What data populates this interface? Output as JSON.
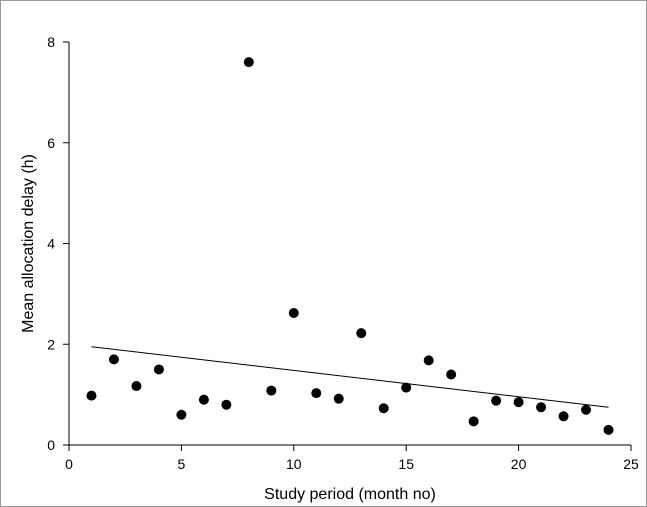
{
  "chart_data": {
    "type": "scatter",
    "title": "",
    "xlabel": "Study period (month no)",
    "ylabel": "Mean allocation delay (h)",
    "xlim": [
      0,
      25
    ],
    "ylim": [
      0,
      8
    ],
    "xticks": [
      0,
      5,
      10,
      15,
      20,
      25
    ],
    "yticks": [
      0,
      2,
      4,
      6,
      8
    ],
    "grid": false,
    "series": [
      {
        "x": [
          1,
          2,
          3,
          4,
          5,
          6,
          7,
          8,
          9,
          10,
          11,
          12,
          13,
          14,
          15,
          16,
          17,
          18,
          19,
          20,
          21,
          22,
          23,
          24
        ],
        "y": [
          0.98,
          1.7,
          1.17,
          1.5,
          0.6,
          0.9,
          0.8,
          7.6,
          1.08,
          2.62,
          1.03,
          0.92,
          2.22,
          0.73,
          1.14,
          1.68,
          1.4,
          0.47,
          0.88,
          0.85,
          0.75,
          0.57,
          0.7,
          0.3
        ],
        "marker_color": "#000000"
      }
    ],
    "trendline": {
      "x": [
        1,
        24
      ],
      "y": [
        1.95,
        0.75
      ],
      "color": "#000000"
    }
  }
}
